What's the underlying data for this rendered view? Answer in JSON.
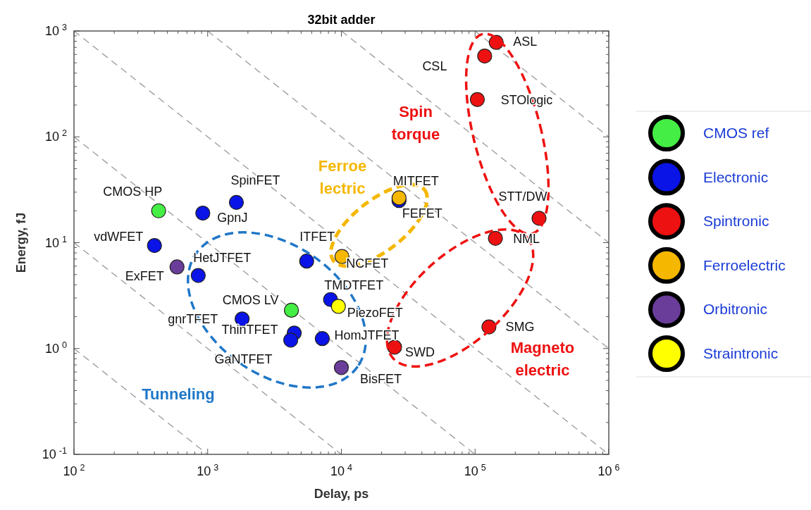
{
  "chart_data": {
    "type": "scatter",
    "title": "32bit adder",
    "xlabel": "Delay, ps",
    "ylabel": "Energy, fJ",
    "log": "xy",
    "marker": "circle",
    "legend": "right",
    "xlim": [
      100,
      1000000
    ],
    "ylim": [
      0.1,
      1000
    ],
    "xticks": [
      {
        "value": 100,
        "label": "10$^{2}$"
      },
      {
        "value": 1000,
        "label": "10$^{3}$"
      },
      {
        "value": 10000,
        "label": "10$^{4}$"
      },
      {
        "value": 100000,
        "label": "10$^{5}$"
      },
      {
        "value": 1000000,
        "label": "10$^{6}$"
      }
    ],
    "yticks": [
      {
        "value": 0.1,
        "label": "10$^{-1}$"
      },
      {
        "value": 1,
        "label": "10$^{0}$"
      },
      {
        "value": 10,
        "label": "10$^{1}$"
      },
      {
        "value": 100,
        "label": "10$^{2}$"
      },
      {
        "value": 1000,
        "label": "10$^{3}$"
      }
    ],
    "series": [
      {
        "type": "line",
        "line_style": "dashed",
        "marker": "none",
        "color": "#999999",
        "x": [
          100,
          1000
        ],
        "values": [
          1,
          0.1
        ]
      },
      {
        "type": "line",
        "line_style": "dashed",
        "marker": "none",
        "color": "#999999",
        "x": [
          100,
          10000
        ],
        "values": [
          10,
          0.1
        ]
      },
      {
        "type": "line",
        "line_style": "dashed",
        "marker": "none",
        "color": "#999999",
        "x": [
          100,
          100000
        ],
        "values": [
          100,
          0.1
        ]
      },
      {
        "type": "line",
        "line_style": "dashed",
        "marker": "none",
        "color": "#999999",
        "x": [
          100,
          1000000
        ],
        "values": [
          1000,
          0.1
        ]
      },
      {
        "type": "line",
        "line_style": "dashed",
        "marker": "none",
        "color": "#999999",
        "x": [
          1000,
          1000000
        ],
        "values": [
          1000,
          1
        ]
      },
      {
        "type": "line",
        "line_style": "dashed",
        "marker": "none",
        "color": "#999999",
        "x": [
          10000,
          1000000
        ],
        "values": [
          1000,
          10
        ]
      },
      {
        "type": "line",
        "line_style": "dashed",
        "marker": "none",
        "color": "#999999",
        "x": [
          100000,
          1000000
        ],
        "values": [
          1000,
          100
        ]
      },
      {
        "name": "CMOS ref",
        "color": "#44ee44",
        "x": [
          430,
          4230
        ],
        "values": [
          20,
          2.3
        ]
      },
      {
        "name": "Electronic",
        "color": "#0a14e6",
        "x": [
          920,
          1640,
          400,
          850,
          1810,
          4440,
          4180,
          7200,
          5500,
          8300,
          27000
        ],
        "values": [
          19,
          24,
          9.4,
          4.9,
          1.9,
          1.4,
          1.2,
          1.24,
          6.7,
          2.9,
          25
        ]
      },
      {
        "name": "Spintronic",
        "color": "#ee1111",
        "x": [
          144000,
          118000,
          104000,
          301000,
          142000,
          127000,
          25000
        ],
        "values": [
          780,
          580,
          225,
          17,
          11,
          1.6,
          1.03
        ]
      },
      {
        "name": "Ferroelectric",
        "color": "#f5b700",
        "x": [
          10100,
          27000
        ],
        "values": [
          7.4,
          26.5
        ]
      },
      {
        "name": "Orbitronic",
        "color": "#6a3d9a",
        "x": [
          590,
          10000
        ],
        "values": [
          5.9,
          0.66
        ]
      },
      {
        "name": "Straintronic",
        "color": "#ffff00",
        "x": [
          9500
        ],
        "values": [
          2.5
        ]
      }
    ],
    "annotations": [
      {
        "text": "CMOS HP",
        "x": 430,
        "y": 20
      },
      {
        "text": "GpnJ",
        "x": 920,
        "y": 19
      },
      {
        "text": "SpinFET",
        "x": 1640,
        "y": 24
      },
      {
        "text": "vdWFET",
        "x": 400,
        "y": 9.4
      },
      {
        "text": "ExFET",
        "x": 590,
        "y": 5.9
      },
      {
        "text": "HetJTFET",
        "x": 850,
        "y": 4.9
      },
      {
        "text": "gnrTFET",
        "x": 1810,
        "y": 1.9
      },
      {
        "text": "CMOS LV",
        "x": 4230,
        "y": 2.3
      },
      {
        "text": "ThinTFET",
        "x": 4440,
        "y": 1.4
      },
      {
        "text": "GaNTFET",
        "x": 4180,
        "y": 1.2
      },
      {
        "text": "HomJTFET",
        "x": 7200,
        "y": 1.24
      },
      {
        "text": "ITFET",
        "x": 5500,
        "y": 6.7
      },
      {
        "text": "TMDTFET",
        "x": 8300,
        "y": 2.9
      },
      {
        "text": "PiezoFET",
        "x": 9500,
        "y": 2.5
      },
      {
        "text": "BisFET",
        "x": 10000,
        "y": 0.66
      },
      {
        "text": "NCFET",
        "x": 10100,
        "y": 7.4
      },
      {
        "text": "MITFET",
        "x": 27000,
        "y": 26.5
      },
      {
        "text": "FEFET",
        "x": 27000,
        "y": 25
      },
      {
        "text": "ASL",
        "x": 144000,
        "y": 780
      },
      {
        "text": "CSL",
        "x": 118000,
        "y": 580
      },
      {
        "text": "STOlogic",
        "x": 104000,
        "y": 225
      },
      {
        "text": "STT/DW",
        "x": 301000,
        "y": 17
      },
      {
        "text": "NML",
        "x": 142000,
        "y": 11
      },
      {
        "text": "SMG",
        "x": 127000,
        "y": 1.6
      },
      {
        "text": "SWD",
        "x": 25000,
        "y": 1.03
      },
      "Tunneling",
      "Ferroe lectric",
      "Spin torque",
      "Magneto electric"
    ]
  }
}
